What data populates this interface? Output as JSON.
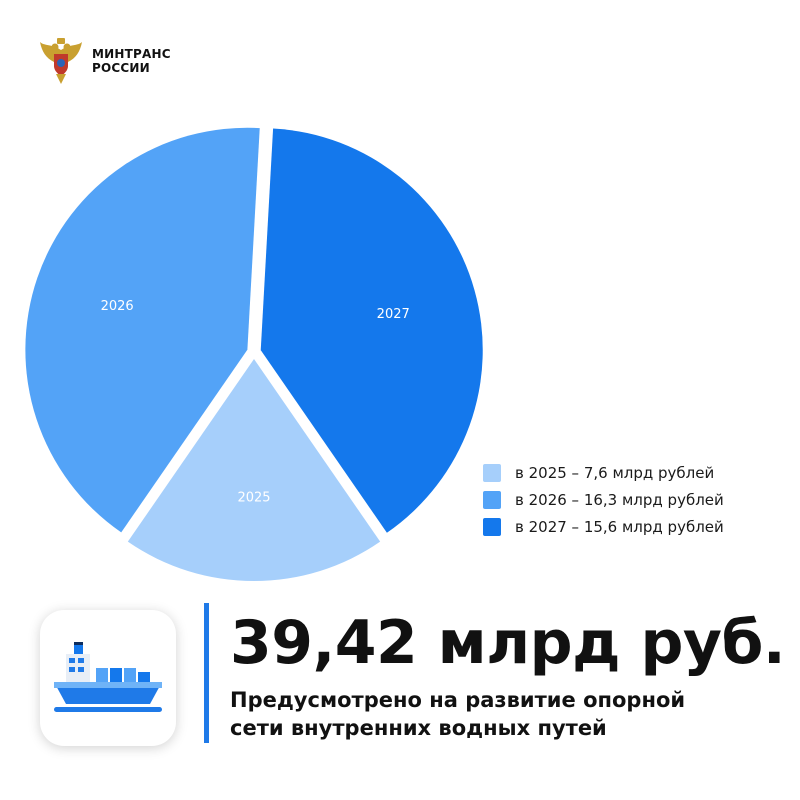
{
  "header": {
    "org_line1": "МИНТРАНС",
    "org_line2": "РОССИИ"
  },
  "colors": {
    "c2025": "#a6cffb",
    "c2026": "#53a3f7",
    "c2027": "#1478ec",
    "accent": "#1f7ae8"
  },
  "legend": [
    {
      "label": "в 2025 – 7,6 млрд рублей",
      "color": "#a6cffb"
    },
    {
      "label": "в 2026 – 16,3 млрд рублей",
      "color": "#53a3f7"
    },
    {
      "label": "в 2027 – 15,6 млрд рублей",
      "color": "#1478ec"
    }
  ],
  "summary": {
    "headline": "39,42 млрд руб.",
    "sub_line1": "Предусмотрено на развитие опорной",
    "sub_line2": "сети внутренних водных путей"
  },
  "chart_data": {
    "type": "pie",
    "unit": "млрд рублей",
    "slices": [
      {
        "label": "2025",
        "value": 7.6,
        "color": "#a6cffb"
      },
      {
        "label": "2026",
        "value": 16.3,
        "color": "#53a3f7"
      },
      {
        "label": "2027",
        "value": 15.6,
        "color": "#1478ec"
      }
    ]
  },
  "icons": {
    "emblem": "coat-of-arms-icon",
    "ship": "cargo-ship-icon"
  }
}
